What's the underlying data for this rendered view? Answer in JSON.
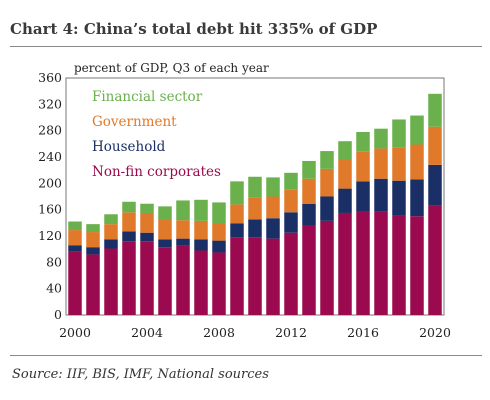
{
  "title": "Chart 4:  China’s total debt hit 335% of GDP",
  "source": "Source: IIF, BIS, IMF, National sources",
  "chart_data": {
    "type": "bar",
    "stacked": true,
    "title": "Chart 4:  China’s total debt hit 335% of GDP",
    "ylabel": "percent of GDP, Q3  of each year",
    "xlabel": "",
    "ylim": [
      0,
      360
    ],
    "yticks": [
      0,
      40,
      80,
      120,
      160,
      200,
      240,
      280,
      320,
      360
    ],
    "x_tick_labels": [
      "2000",
      "2004",
      "2008",
      "2012",
      "2016",
      "2020"
    ],
    "categories": [
      "2000",
      "2001",
      "2002",
      "2003",
      "2004",
      "2005",
      "2006",
      "2007",
      "2008",
      "2009",
      "2010",
      "2011",
      "2012",
      "2013",
      "2014",
      "2015",
      "2016",
      "2017",
      "2018",
      "2019",
      "2020"
    ],
    "grid": false,
    "legend_position": "top-left",
    "series": [
      {
        "name": "Non-fin corporates",
        "color": "#9b0a4f",
        "values": [
          96,
          92,
          101,
          112,
          112,
          103,
          105,
          98,
          95,
          118,
          118,
          116,
          125,
          136,
          143,
          155,
          158,
          157,
          151,
          150,
          167
        ]
      },
      {
        "name": "Household",
        "color": "#1a2f66",
        "values": [
          10,
          11,
          14,
          15,
          13,
          12,
          11,
          17,
          18,
          21,
          27,
          31,
          31,
          33,
          37,
          37,
          45,
          50,
          53,
          56,
          61
        ]
      },
      {
        "name": "Government",
        "color": "#e07a2a",
        "values": [
          23,
          23,
          23,
          29,
          30,
          30,
          28,
          28,
          26,
          29,
          33,
          33,
          35,
          38,
          42,
          45,
          45,
          46,
          50,
          53,
          58
        ]
      },
      {
        "name": "Financial sector",
        "color": "#6ab04c",
        "values": [
          13,
          12,
          15,
          16,
          14,
          20,
          30,
          32,
          32,
          35,
          32,
          29,
          25,
          27,
          27,
          27,
          30,
          30,
          43,
          44,
          50
        ]
      }
    ]
  }
}
